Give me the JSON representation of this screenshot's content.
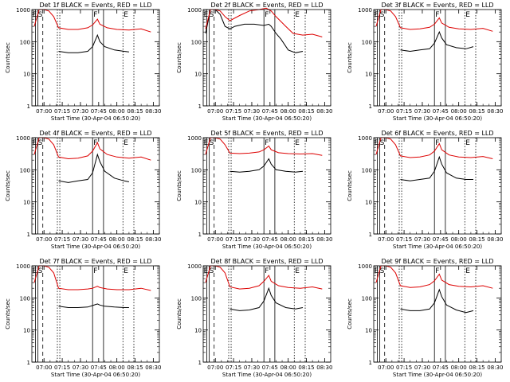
{
  "figure": {
    "ylabel": "Counts/sec",
    "xlabel": "Start Time (30-Apr-04 06:50:20)",
    "xticks": [
      "07:00",
      "07:15",
      "07:30",
      "07:45",
      "08:00",
      "08:15",
      "08:30"
    ],
    "yticks": [
      "1",
      "10",
      "100",
      "1000"
    ],
    "markers": {
      "e": "E",
      "s": "S",
      "f": "F",
      "e2": "E"
    }
  },
  "chart_data": [
    {
      "type": "line",
      "title": "Det 1f BLACK = Events, RED = LLD",
      "yscale": "log",
      "ylim": [
        1,
        1000
      ],
      "series": [
        {
          "color": "#000000",
          "x": [
            "07:12",
            "07:20",
            "07:28",
            "07:36",
            "07:40",
            "07:44",
            "07:46",
            "07:50",
            "07:58",
            "08:06",
            "08:10"
          ],
          "values": [
            50,
            45,
            45,
            50,
            70,
            160,
            100,
            70,
            55,
            50,
            48
          ]
        },
        {
          "color": "#dd0000",
          "x": [
            "06:52",
            "06:56",
            "07:00",
            "07:04",
            "07:08",
            "07:12",
            "07:20",
            "07:28",
            "07:36",
            "07:40",
            "07:44",
            "07:46",
            "07:52",
            "08:00",
            "08:10",
            "08:20",
            "08:28"
          ],
          "values": [
            300,
            1000,
            1000,
            900,
            600,
            270,
            240,
            240,
            270,
            330,
            500,
            350,
            270,
            240,
            230,
            250,
            200
          ]
        }
      ]
    },
    {
      "type": "line",
      "title": "Det 2f BLACK = Events, RED = LLD",
      "yscale": "log",
      "ylim": [
        1,
        1000
      ],
      "series": [
        {
          "color": "#000000",
          "x": [
            "06:52",
            "06:56",
            "07:00",
            "07:04",
            "07:08",
            "07:12",
            "07:16",
            "07:24",
            "07:32",
            "07:40",
            "07:44",
            "07:46",
            "07:50",
            "07:54",
            "08:00",
            "08:06",
            "08:12"
          ],
          "values": [
            180,
            1000,
            1000,
            700,
            300,
            250,
            300,
            350,
            350,
            320,
            350,
            300,
            180,
            120,
            55,
            45,
            50
          ]
        },
        {
          "color": "#dd0000",
          "x": [
            "06:52",
            "06:56",
            "07:00",
            "07:04",
            "07:08",
            "07:12",
            "07:20",
            "07:28",
            "07:36",
            "07:42",
            "07:46",
            "07:50",
            "07:58",
            "08:04",
            "08:12",
            "08:20",
            "08:28"
          ],
          "values": [
            250,
            1000,
            1000,
            900,
            600,
            450,
            650,
            900,
            1000,
            1100,
            900,
            600,
            300,
            180,
            160,
            170,
            140
          ]
        }
      ]
    },
    {
      "type": "line",
      "title": "Det 3f BLACK = Events, RED = LLD",
      "yscale": "log",
      "ylim": [
        1,
        1000
      ],
      "series": [
        {
          "color": "#000000",
          "x": [
            "07:12",
            "07:20",
            "07:28",
            "07:36",
            "07:40",
            "07:44",
            "07:46",
            "07:50",
            "07:58",
            "08:06",
            "08:12"
          ],
          "values": [
            55,
            50,
            55,
            60,
            90,
            200,
            130,
            80,
            65,
            60,
            70
          ]
        },
        {
          "color": "#dd0000",
          "x": [
            "06:52",
            "06:56",
            "07:00",
            "07:04",
            "07:08",
            "07:12",
            "07:20",
            "07:28",
            "07:36",
            "07:40",
            "07:44",
            "07:46",
            "07:52",
            "08:00",
            "08:10",
            "08:20",
            "08:28"
          ],
          "values": [
            300,
            1000,
            1000,
            900,
            600,
            270,
            240,
            250,
            280,
            350,
            550,
            380,
            280,
            250,
            240,
            260,
            210
          ]
        }
      ]
    },
    {
      "type": "line",
      "title": "Det 4f BLACK = Events, RED = LLD",
      "yscale": "log",
      "ylim": [
        1,
        1000
      ],
      "series": [
        {
          "color": "#000000",
          "x": [
            "07:12",
            "07:20",
            "07:28",
            "07:36",
            "07:40",
            "07:44",
            "07:46",
            "07:50",
            "07:58",
            "08:06",
            "08:10"
          ],
          "values": [
            45,
            40,
            45,
            50,
            80,
            300,
            180,
            90,
            55,
            45,
            42
          ]
        },
        {
          "color": "#dd0000",
          "x": [
            "06:52",
            "06:56",
            "07:00",
            "07:04",
            "07:08",
            "07:12",
            "07:20",
            "07:28",
            "07:36",
            "07:40",
            "07:44",
            "07:46",
            "07:52",
            "08:00",
            "08:10",
            "08:20",
            "08:28"
          ],
          "values": [
            300,
            1000,
            1000,
            900,
            600,
            250,
            220,
            230,
            270,
            380,
            700,
            450,
            300,
            250,
            230,
            250,
            200
          ]
        }
      ]
    },
    {
      "type": "line",
      "title": "Det 5f BLACK = Events, RED = LLD",
      "yscale": "log",
      "ylim": [
        1,
        1000
      ],
      "series": [
        {
          "color": "#000000",
          "x": [
            "07:12",
            "07:20",
            "07:28",
            "07:36",
            "07:40",
            "07:44",
            "07:46",
            "07:50",
            "07:58",
            "08:06",
            "08:12"
          ],
          "values": [
            90,
            85,
            90,
            100,
            130,
            220,
            150,
            100,
            90,
            85,
            90
          ]
        },
        {
          "color": "#dd0000",
          "x": [
            "06:52",
            "06:56",
            "07:00",
            "07:04",
            "07:08",
            "07:12",
            "07:20",
            "07:28",
            "07:36",
            "07:40",
            "07:44",
            "07:46",
            "07:52",
            "08:00",
            "08:10",
            "08:20",
            "08:28"
          ],
          "values": [
            300,
            1000,
            1000,
            900,
            600,
            330,
            320,
            330,
            360,
            420,
            550,
            420,
            340,
            320,
            310,
            320,
            280
          ]
        }
      ]
    },
    {
      "type": "line",
      "title": "Det 6f BLACK = Events, RED = LLD",
      "yscale": "log",
      "ylim": [
        1,
        1000
      ],
      "series": [
        {
          "color": "#000000",
          "x": [
            "07:12",
            "07:20",
            "07:28",
            "07:36",
            "07:40",
            "07:44",
            "07:46",
            "07:50",
            "07:58",
            "08:06",
            "08:12"
          ],
          "values": [
            50,
            45,
            50,
            55,
            90,
            250,
            150,
            80,
            55,
            50,
            50
          ]
        },
        {
          "color": "#dd0000",
          "x": [
            "06:52",
            "06:56",
            "07:00",
            "07:04",
            "07:08",
            "07:12",
            "07:20",
            "07:28",
            "07:36",
            "07:40",
            "07:44",
            "07:46",
            "07:52",
            "08:00",
            "08:10",
            "08:20",
            "08:28"
          ],
          "values": [
            300,
            1000,
            1000,
            900,
            600,
            270,
            240,
            250,
            290,
            380,
            650,
            420,
            290,
            250,
            240,
            260,
            220
          ]
        }
      ]
    },
    {
      "type": "line",
      "title": "Det 7f BLACK = Events, RED = LLD",
      "yscale": "log",
      "ylim": [
        1,
        1000
      ],
      "series": [
        {
          "color": "#000000",
          "x": [
            "07:12",
            "07:20",
            "07:28",
            "07:36",
            "07:40",
            "07:44",
            "07:46",
            "07:50",
            "07:58",
            "08:06",
            "08:10"
          ],
          "values": [
            55,
            50,
            50,
            52,
            58,
            65,
            60,
            55,
            52,
            50,
            50
          ]
        },
        {
          "color": "#dd0000",
          "x": [
            "06:52",
            "06:56",
            "07:00",
            "07:04",
            "07:08",
            "07:12",
            "07:20",
            "07:28",
            "07:36",
            "07:40",
            "07:44",
            "07:46",
            "07:52",
            "08:00",
            "08:10",
            "08:20",
            "08:28"
          ],
          "values": [
            300,
            1000,
            1000,
            900,
            600,
            200,
            180,
            180,
            190,
            200,
            230,
            210,
            190,
            180,
            180,
            200,
            170
          ]
        }
      ]
    },
    {
      "type": "line",
      "title": "Det 8f BLACK = Events, RED = LLD",
      "yscale": "log",
      "ylim": [
        1,
        1000
      ],
      "series": [
        {
          "color": "#000000",
          "x": [
            "07:12",
            "07:20",
            "07:28",
            "07:36",
            "07:40",
            "07:44",
            "07:46",
            "07:50",
            "07:58",
            "08:06",
            "08:12"
          ],
          "values": [
            45,
            40,
            42,
            50,
            80,
            200,
            120,
            70,
            50,
            45,
            50
          ]
        },
        {
          "color": "#dd0000",
          "x": [
            "06:52",
            "06:56",
            "07:00",
            "07:04",
            "07:08",
            "07:12",
            "07:20",
            "07:28",
            "07:36",
            "07:40",
            "07:44",
            "07:46",
            "07:52",
            "08:00",
            "08:10",
            "08:20",
            "08:28"
          ],
          "values": [
            300,
            1000,
            1000,
            900,
            600,
            220,
            190,
            200,
            240,
            330,
            500,
            330,
            240,
            210,
            200,
            220,
            190
          ]
        }
      ]
    },
    {
      "type": "line",
      "title": "Det 9f BLACK = Events, RED = LLD",
      "yscale": "log",
      "ylim": [
        1,
        1000
      ],
      "series": [
        {
          "color": "#000000",
          "x": [
            "07:12",
            "07:20",
            "07:28",
            "07:36",
            "07:40",
            "07:44",
            "07:46",
            "07:50",
            "07:58",
            "08:06",
            "08:12"
          ],
          "values": [
            45,
            40,
            40,
            45,
            70,
            180,
            110,
            60,
            42,
            35,
            40
          ]
        },
        {
          "color": "#dd0000",
          "x": [
            "06:52",
            "06:56",
            "07:00",
            "07:04",
            "07:08",
            "07:12",
            "07:20",
            "07:28",
            "07:36",
            "07:40",
            "07:44",
            "07:46",
            "07:52",
            "08:00",
            "08:10",
            "08:20",
            "08:28"
          ],
          "values": [
            300,
            1000,
            1000,
            900,
            600,
            240,
            210,
            220,
            260,
            340,
            550,
            360,
            260,
            230,
            220,
            240,
            200
          ]
        }
      ]
    }
  ]
}
